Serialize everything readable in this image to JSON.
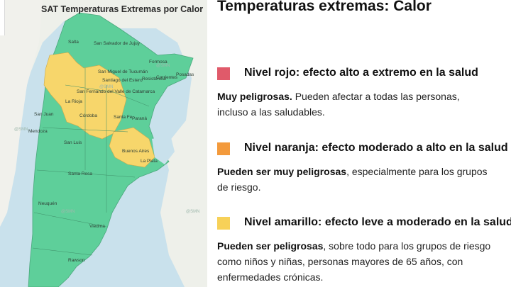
{
  "map": {
    "title": "SAT Temperaturas Extremas por Calor",
    "cities": [
      "Salta",
      "San Salvador de Jujuy",
      "San Miguel de Tucumán",
      "Santiago del Estero",
      "San Fernando del Valle de Catamarca",
      "La Rioja",
      "San Juan",
      "Mendoza",
      "Córdoba",
      "Santa Fe",
      "Paraná",
      "San Luis",
      "Santa Rosa",
      "Neuquén",
      "Viedma",
      "Rawson",
      "Buenos Aires",
      "La Plata",
      "Resistencia",
      "Corrientes",
      "Posadas",
      "Formosa"
    ],
    "watermark": "@SMN",
    "colors": {
      "green": "#5ecf9a",
      "yellow": "#f7d66b",
      "orange": "#f7a24a",
      "red": "#e05a6a",
      "water": "#c9e1ec"
    }
  },
  "panel": {
    "title": "Temperaturas extremas: Calor",
    "levels": [
      {
        "color": "#e05a6a",
        "title": "Nivel rojo: efecto alto a extremo en la salud",
        "desc_bold": "Muy peligrosas.",
        "desc_rest": " Pueden afectar a todas las personas,",
        "desc_line2": "incluso a las saludables."
      },
      {
        "color": "#f39a3c",
        "title": "Nivel naranja: efecto moderado a alto en la salud",
        "desc_bold": "Pueden ser muy peligrosas",
        "desc_rest": ", especialmente para los grupos",
        "desc_line2": "de riesgo."
      },
      {
        "color": "#f7d158",
        "title": "Nivel amarillo: efecto leve a moderado en la salud",
        "desc_bold": "Pueden ser peligrosas",
        "desc_rest": ", sobre todo para los grupos de riesgo",
        "desc_line2": "como niños y niñas, personas mayores de 65 años, con",
        "desc_line3": "enfermedades crónicas."
      }
    ]
  }
}
